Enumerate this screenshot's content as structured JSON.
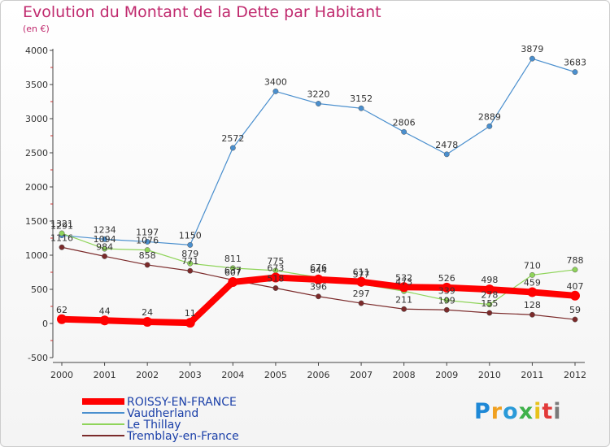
{
  "chart_data": {
    "type": "line",
    "title": "Evolution du Montant de la Dette par Habitant",
    "subtitle": "(en €)",
    "x": [
      "2000",
      "2001",
      "2002",
      "2003",
      "2004",
      "2005",
      "2006",
      "2007",
      "2008",
      "2009",
      "2010",
      "2011",
      "2012"
    ],
    "ylim": [
      -500,
      4000
    ],
    "yticks": [
      -500,
      0,
      500,
      1000,
      1500,
      2000,
      2500,
      3000,
      3500,
      4000
    ],
    "grid": false,
    "legend_position": "bottom-left",
    "series": [
      {
        "name": "Vaudherland",
        "color": "#4a8fce",
        "values": [
          1291,
          1234,
          1197,
          1150,
          2572,
          3400,
          3220,
          3152,
          2806,
          2478,
          2889,
          3879,
          3683
        ]
      },
      {
        "name": "Le Thillay",
        "color": "#8fd45a",
        "values": [
          1321,
          1094,
          1076,
          879,
          811,
          775,
          676,
          577,
          473,
          339,
          278,
          710,
          788
        ]
      },
      {
        "name": "Tremblay-en-France",
        "color": "#7b2a2a",
        "values": [
          1116,
          984,
          858,
          771,
          637,
          518,
          396,
          297,
          211,
          199,
          155,
          128,
          59
        ]
      },
      {
        "name": "ROISSY-EN-FRANCE",
        "color": "#ff0000",
        "values": [
          62,
          44,
          24,
          11,
          607,
          673,
          644,
          611,
          532,
          526,
          498,
          459,
          407
        ]
      }
    ]
  },
  "legend": [
    {
      "label": "ROISSY-EN-FRANCE",
      "color": "#ff0000"
    },
    {
      "label": "Vaudherland",
      "color": "#4a8fce"
    },
    {
      "label": "Le Thillay",
      "color": "#8fd45a"
    },
    {
      "label": "Tremblay-en-France",
      "color": "#7b2a2a"
    }
  ],
  "logo": {
    "letters": [
      "P",
      "r",
      "o",
      "x",
      "i",
      "t",
      "i"
    ],
    "colors": [
      "#1e88d6",
      "#f0a020",
      "#2a9ad8",
      "#3fb14a",
      "#e8c21a",
      "#e23a3a",
      "#7a7a7a"
    ]
  }
}
